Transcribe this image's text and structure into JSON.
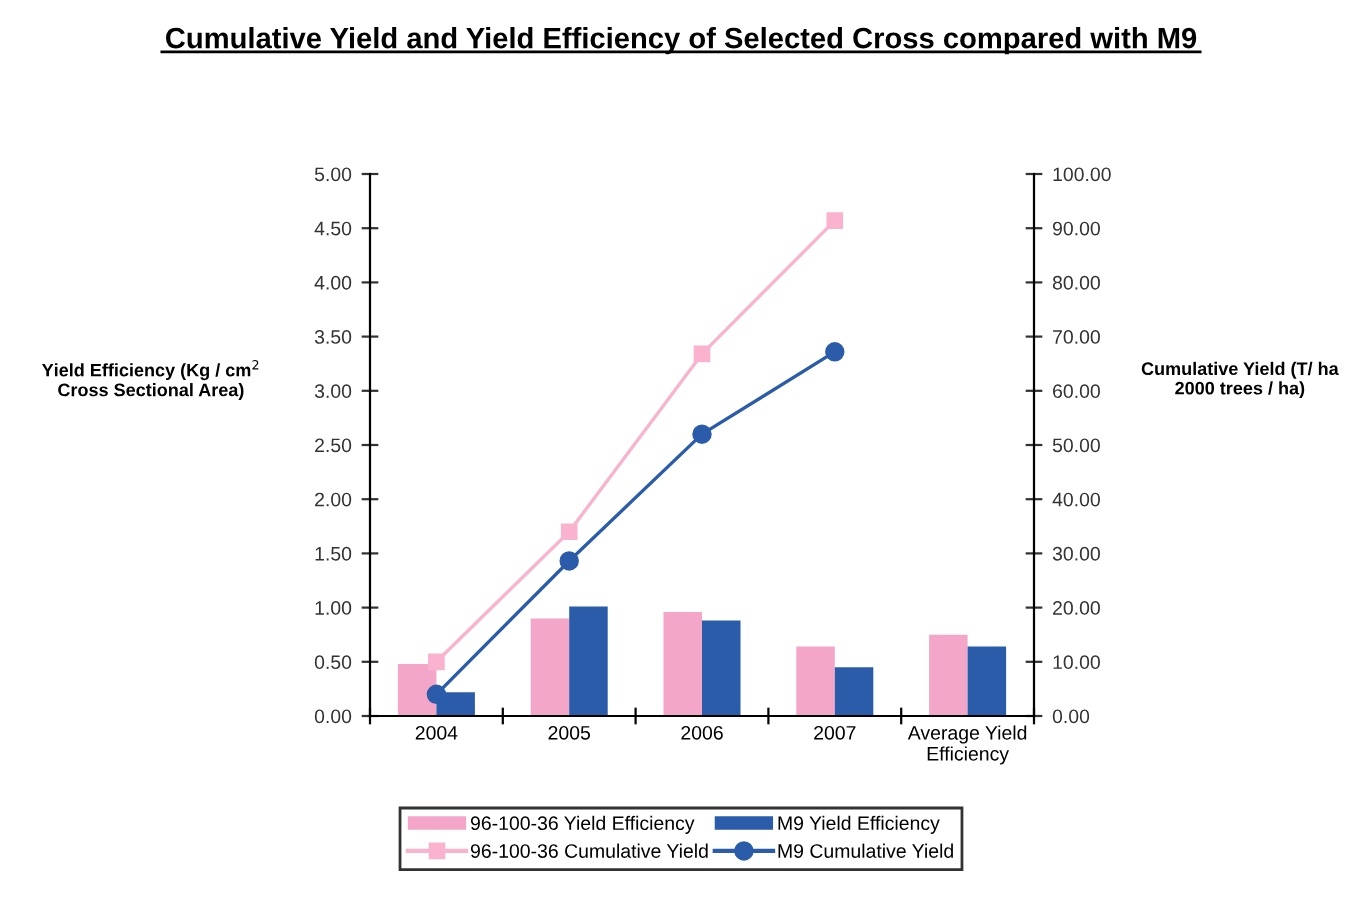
{
  "chart_data": {
    "type": "bar",
    "title": "Cumulative Yield and Yield Efficiency of Selected Cross compared with M9",
    "ylabel": "Yield Efficiency (Kg / cm$^{2}$\nCross Sectional Area)",
    "y2label": "Cumulative Yield (T/ ha\n2000 trees / ha)",
    "categories": [
      "2004",
      "2005",
      "2006",
      "2007",
      "Average Yield\nEfficiency"
    ],
    "series": [
      {
        "name": "96-100-36 Yield Efficiency",
        "color": "#f4a6c8",
        "values": [
          0.48,
          0.9,
          0.96,
          0.64,
          0.75
        ]
      },
      {
        "name": "M9 Yield Efficiency",
        "color": "#2a5caa",
        "values": [
          0.22,
          1.01,
          0.88,
          0.45,
          0.64
        ]
      },
      {
        "name": "96-100-36 Cumulative Yield",
        "type": "line",
        "axis": "y2",
        "marker": "square",
        "color": "#f9b3cf",
        "values": [
          10,
          34,
          66.8,
          91.4,
          null
        ]
      },
      {
        "name": "M9 Cumulative Yield",
        "type": "line",
        "axis": "y2",
        "marker": "circle",
        "color": "#2a5caa",
        "values": [
          4,
          28.6,
          52,
          67.2,
          null
        ]
      }
    ],
    "ylim": [
      0,
      5
    ],
    "yticks": [
      {
        "value": 0,
        "label": "0.00"
      },
      {
        "value": 0.5,
        "label": "0.50"
      },
      {
        "value": 1,
        "label": "1.00"
      },
      {
        "value": 1.5,
        "label": "1.50"
      },
      {
        "value": 2,
        "label": "2.00"
      },
      {
        "value": 2.5,
        "label": "2.50"
      },
      {
        "value": 3,
        "label": "3.00"
      },
      {
        "value": 3.5,
        "label": "3.50"
      },
      {
        "value": 4,
        "label": "4.00"
      },
      {
        "value": 4.5,
        "label": "4.50"
      },
      {
        "value": 5,
        "label": "5.00"
      }
    ],
    "y2lim": [
      0,
      100
    ],
    "y2ticks": [
      {
        "value": 0,
        "label": "0.00"
      },
      {
        "value": 10,
        "label": "10.00"
      },
      {
        "value": 20,
        "label": "20.00"
      },
      {
        "value": 30,
        "label": "30.00"
      },
      {
        "value": 40,
        "label": "40.00"
      },
      {
        "value": 50,
        "label": "50.00"
      },
      {
        "value": 60,
        "label": "60.00"
      },
      {
        "value": 70,
        "label": "70.00"
      },
      {
        "value": 80,
        "label": "80.00"
      },
      {
        "value": 90,
        "label": "90.00"
      },
      {
        "value": 100,
        "label": "100.00"
      }
    ],
    "legend": "bottom",
    "grid": false
  }
}
